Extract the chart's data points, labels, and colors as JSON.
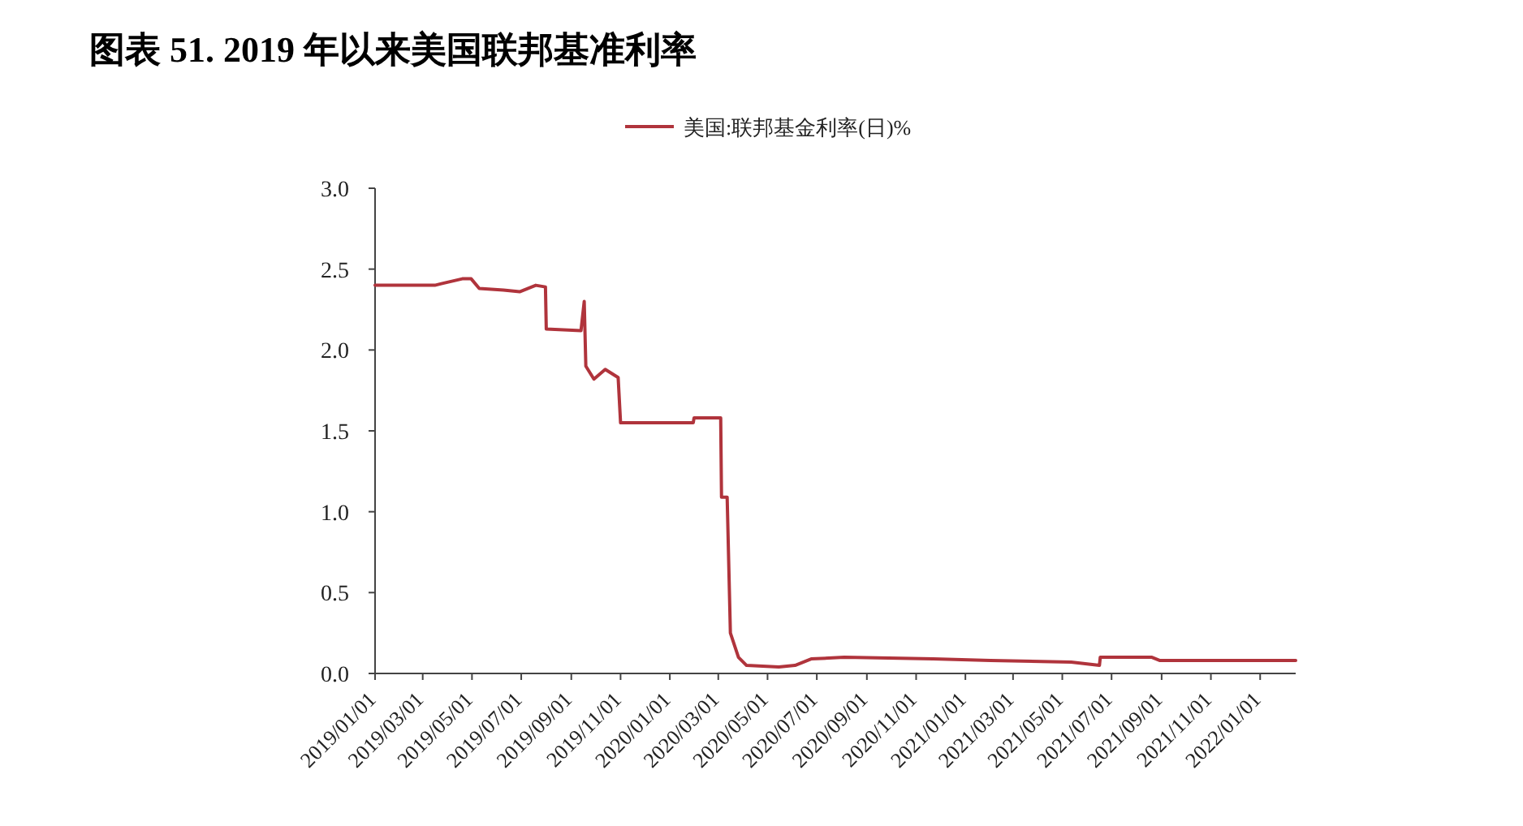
{
  "chart_data": {
    "type": "line",
    "title": "图表 51. 2019 年以来美国联邦基准利率",
    "legend": "top",
    "xlim": [
      "2019-01-01",
      "2022-02-14"
    ],
    "xticks": [
      {
        "value": "2019-01-01",
        "label": "2019/01/01"
      },
      {
        "value": "2019-03-01",
        "label": "2019/03/01"
      },
      {
        "value": "2019-05-01",
        "label": "2019/05/01"
      },
      {
        "value": "2019-07-01",
        "label": "2019/07/01"
      },
      {
        "value": "2019-09-01",
        "label": "2019/09/01"
      },
      {
        "value": "2019-11-01",
        "label": "2019/11/01"
      },
      {
        "value": "2020-01-01",
        "label": "2020/01/01"
      },
      {
        "value": "2020-03-01",
        "label": "2020/03/01"
      },
      {
        "value": "2020-05-01",
        "label": "2020/05/01"
      },
      {
        "value": "2020-07-01",
        "label": "2020/07/01"
      },
      {
        "value": "2020-09-01",
        "label": "2020/09/01"
      },
      {
        "value": "2020-11-01",
        "label": "2020/11/01"
      },
      {
        "value": "2021-01-01",
        "label": "2021/01/01"
      },
      {
        "value": "2021-03-01",
        "label": "2021/03/01"
      },
      {
        "value": "2021-05-01",
        "label": "2021/05/01"
      },
      {
        "value": "2021-07-01",
        "label": "2021/07/01"
      },
      {
        "value": "2021-09-01",
        "label": "2021/09/01"
      },
      {
        "value": "2021-11-01",
        "label": "2021/11/01"
      },
      {
        "value": "2022-01-01",
        "label": "2022/01/01"
      }
    ],
    "ylim": [
      0,
      3.0
    ],
    "yticks": [
      {
        "value": 0,
        "label": "0.0"
      },
      {
        "value": 0.5,
        "label": "0.5"
      },
      {
        "value": 1.0,
        "label": "1.0"
      },
      {
        "value": 1.5,
        "label": "1.5"
      },
      {
        "value": 2.0,
        "label": "2.0"
      },
      {
        "value": 2.5,
        "label": "2.5"
      },
      {
        "value": 3.0,
        "label": "3.0"
      }
    ],
    "grid": false,
    "series": [
      {
        "name": "美国:联邦基金利率(日)%",
        "color": "#b0343c",
        "x": [
          "2019-01-01",
          "2019-03-16",
          "2019-03-24",
          "2019-04-19",
          "2019-04-30",
          "2019-05-10",
          "2019-06-09",
          "2019-06-29",
          "2019-07-09",
          "2019-07-19",
          "2019-07-31",
          "2019-08-01",
          "2019-09-13",
          "2019-09-17",
          "2019-09-19",
          "2019-09-29",
          "2019-10-13",
          "2019-10-29",
          "2019-11-01",
          "2020-01-30",
          "2020-01-31",
          "2020-03-04",
          "2020-03-05",
          "2020-03-12",
          "2020-03-16",
          "2020-03-26",
          "2020-04-05",
          "2020-05-15",
          "2020-06-04",
          "2020-06-24",
          "2020-08-04",
          "2020-11-22",
          "2021-02-01",
          "2021-05-12",
          "2021-06-16",
          "2021-06-17",
          "2021-08-20",
          "2021-08-30",
          "2022-02-14"
        ],
        "values": [
          2.4,
          2.4,
          2.41,
          2.44,
          2.44,
          2.38,
          2.37,
          2.36,
          2.38,
          2.4,
          2.39,
          2.13,
          2.12,
          2.3,
          1.9,
          1.82,
          1.88,
          1.83,
          1.55,
          1.55,
          1.58,
          1.58,
          1.09,
          1.09,
          0.25,
          0.1,
          0.05,
          0.04,
          0.05,
          0.09,
          0.1,
          0.09,
          0.08,
          0.07,
          0.05,
          0.1,
          0.1,
          0.08,
          0.08
        ]
      }
    ]
  }
}
